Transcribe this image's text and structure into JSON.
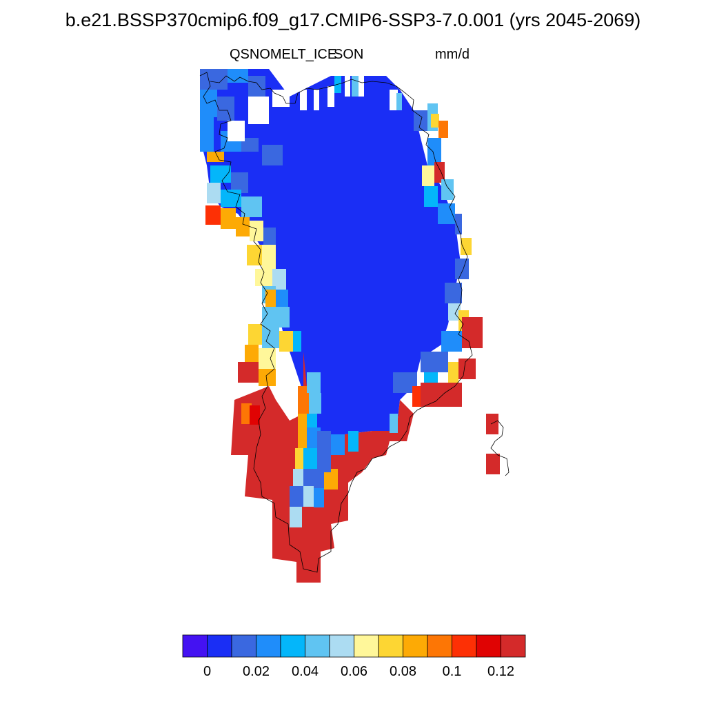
{
  "title": "b.e21.BSSP370cmip6.f09_g17.CMIP6-SSP3-7.0.001 (yrs 2045-2069)",
  "subtitle_left": "QSNOMELT_ICE",
  "subtitle_center": "SON",
  "subtitle_right": "mm/d",
  "region": "Greenland",
  "colorbar": {
    "colors": [
      "#4412f2",
      "#1a2ef5",
      "#3a68e0",
      "#1f8dfa",
      "#04b6fa",
      "#60c4f2",
      "#acdcf2",
      "#fff79a",
      "#fdd633",
      "#fdaa05",
      "#fd7605",
      "#fd3005",
      "#e00303",
      "#d42a2a"
    ],
    "tick_labels": [
      "0",
      "0.02",
      "0.04",
      "0.06",
      "0.08",
      "0.1",
      "0.12"
    ]
  },
  "legend_colors": {
    "ice_interior": "#1a2ef5",
    "coast_blue": "#3a68e0",
    "southwest_high": "#d42a2a",
    "coastline": "#000000"
  }
}
